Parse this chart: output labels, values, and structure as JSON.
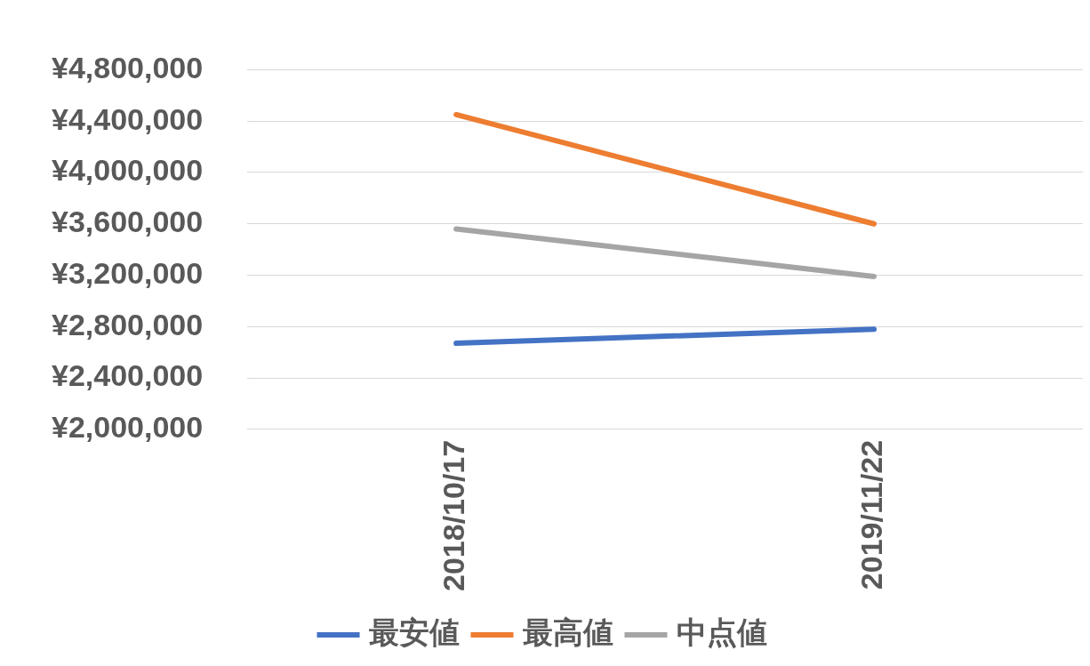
{
  "chart_data": {
    "type": "line",
    "categories": [
      "2018/10/17",
      "2019/11/22"
    ],
    "series": [
      {
        "name": "最安値",
        "color": "#4472c4",
        "values": [
          2670000,
          2780000
        ]
      },
      {
        "name": "最高値",
        "color": "#ed7d31",
        "values": [
          4450000,
          3600000
        ]
      },
      {
        "name": "中点値",
        "color": "#a5a5a5",
        "values": [
          3560000,
          3190000
        ]
      }
    ],
    "ylim": [
      2000000,
      4800000
    ],
    "yticks": [
      {
        "value": 2000000,
        "label": "¥2,000,000"
      },
      {
        "value": 2400000,
        "label": "¥2,400,000"
      },
      {
        "value": 2800000,
        "label": "¥2,800,000"
      },
      {
        "value": 3200000,
        "label": "¥3,200,000"
      },
      {
        "value": 3600000,
        "label": "¥3,600,000"
      },
      {
        "value": 4000000,
        "label": "¥4,000,000"
      },
      {
        "value": 4400000,
        "label": "¥4,400,000"
      },
      {
        "value": 4800000,
        "label": "¥4,800,000"
      }
    ],
    "grid": "y",
    "legend": "bottom",
    "marker": "none",
    "line_style": "solid"
  }
}
